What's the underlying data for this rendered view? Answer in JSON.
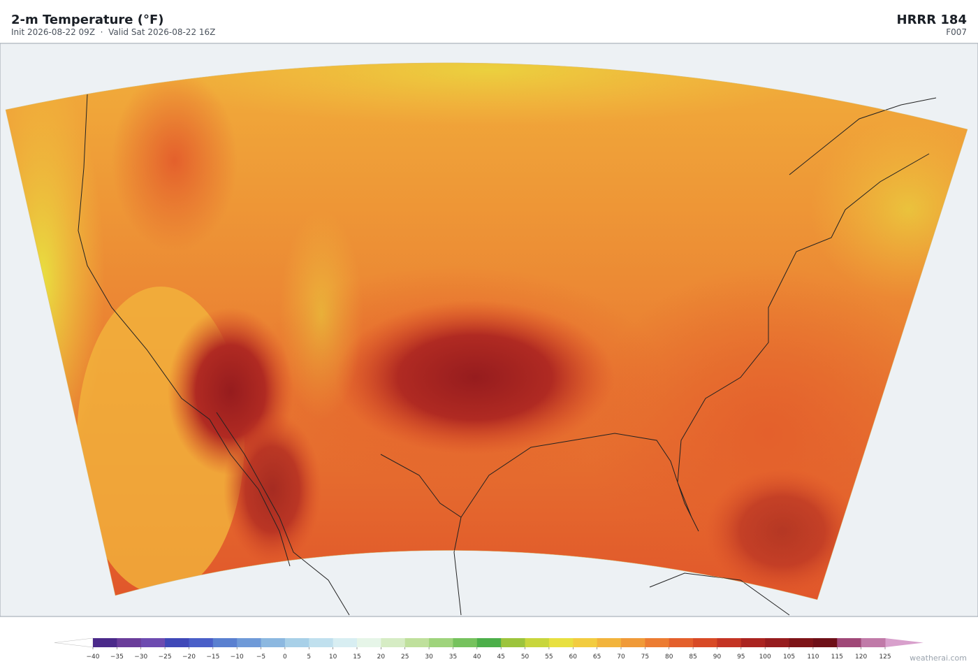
{
  "header": {
    "title": "2-m Temperature  (°F)",
    "subtitle": "Init 2026-08-22 09Z  ·  Valid Sat 2026-08-22 16Z",
    "model": "HRRR  184",
    "forecast_hour": "F007"
  },
  "colorbar": {
    "ticks": [
      {
        "value": -40,
        "label": "−40"
      },
      {
        "value": -35,
        "label": "−35"
      },
      {
        "value": -30,
        "label": "−30"
      },
      {
        "value": -25,
        "label": "−25"
      },
      {
        "value": -20,
        "label": "−20"
      },
      {
        "value": -15,
        "label": "−15"
      },
      {
        "value": -10,
        "label": "−10"
      },
      {
        "value": -5,
        "label": "−5"
      },
      0,
      5,
      10,
      15,
      20,
      25,
      30,
      35,
      40,
      45,
      50,
      55,
      60,
      65,
      70,
      75,
      80,
      85,
      90,
      95,
      100,
      105,
      110,
      115,
      120,
      125
    ],
    "colors": [
      "#4b2a8a",
      "#6a3d9a",
      "#6d4bb0",
      "#3f48b8",
      "#4a5fc8",
      "#5a80d0",
      "#6f9ad8",
      "#8cb8e0",
      "#a8d0e8",
      "#c0e0ee",
      "#d8eef2",
      "#e6f5e8",
      "#d6ecc4",
      "#bfe09c",
      "#9fd47c",
      "#76c25e",
      "#4caf4a",
      "#9cc43c",
      "#c8d63c",
      "#e8e040",
      "#f2cc40",
      "#f2b43c",
      "#f09a38",
      "#ec7c32",
      "#e4602c",
      "#d84a26",
      "#c43424",
      "#aa2420",
      "#961c1e",
      "#7e1418",
      "#6e1018",
      "#a04878",
      "#c07aa8",
      "#d8a0cc"
    ],
    "under_color": "#ffffff",
    "over_color": "#d8a0cc"
  },
  "footer": {
    "credit": "weatherai.com"
  }
}
